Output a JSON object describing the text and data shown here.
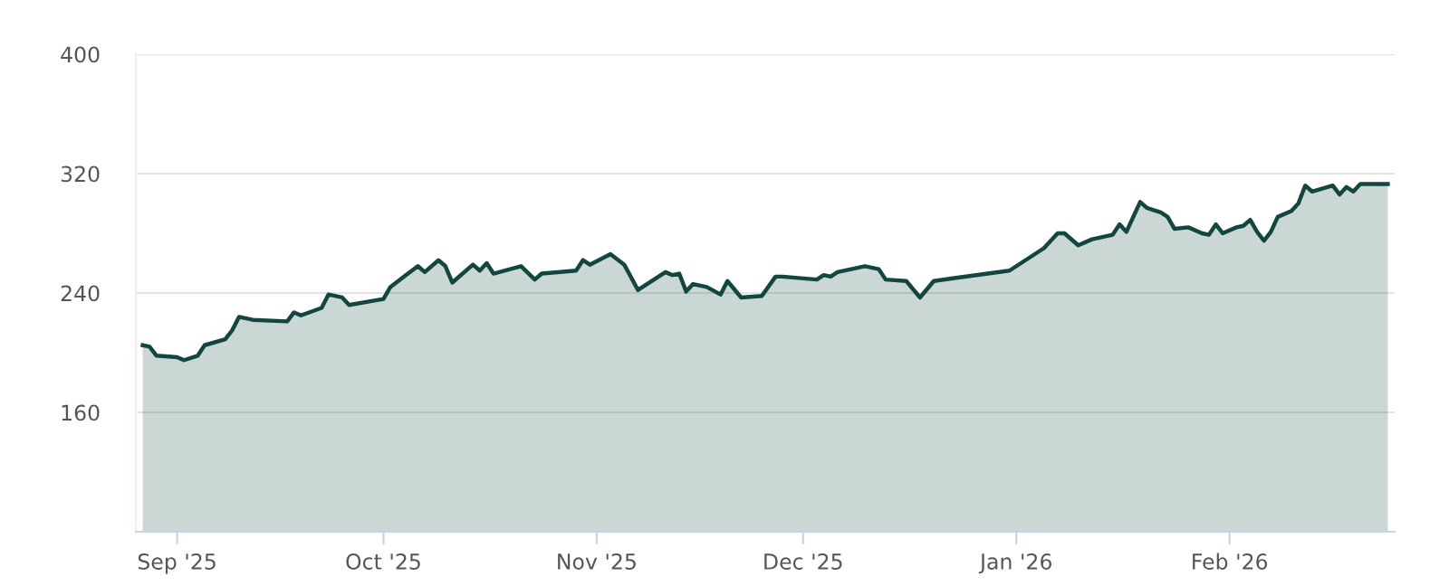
{
  "chart_data": {
    "type": "area",
    "color": "#12473f",
    "grid": "y",
    "marker": "none",
    "line_style": "solid",
    "x": [
      "2025-08-27",
      "2025-08-28",
      "2025-08-29",
      "2025-09-01",
      "2025-09-02",
      "2025-09-04",
      "2025-09-05",
      "2025-09-08",
      "2025-09-09",
      "2025-09-10",
      "2025-09-12",
      "2025-09-17",
      "2025-09-18",
      "2025-09-19",
      "2025-09-22",
      "2025-09-23",
      "2025-09-25",
      "2025-09-26",
      "2025-10-01",
      "2025-10-02",
      "2025-10-04",
      "2025-10-06",
      "2025-10-07",
      "2025-10-09",
      "2025-10-10",
      "2025-10-11",
      "2025-10-14",
      "2025-10-15",
      "2025-10-16",
      "2025-10-17",
      "2025-10-21",
      "2025-10-23",
      "2025-10-24",
      "2025-10-29",
      "2025-10-30",
      "2025-10-31",
      "2025-11-03",
      "2025-11-05",
      "2025-11-07",
      "2025-11-11",
      "2025-11-12",
      "2025-11-13",
      "2025-11-14",
      "2025-11-15",
      "2025-11-17",
      "2025-11-19",
      "2025-11-20",
      "2025-11-22",
      "2025-11-25",
      "2025-11-27",
      "2025-11-28",
      "2025-12-03",
      "2025-12-04",
      "2025-12-05",
      "2025-12-06",
      "2025-12-10",
      "2025-12-12",
      "2025-12-13",
      "2025-12-16",
      "2025-12-18",
      "2025-12-20",
      "2025-12-23",
      "2025-12-31",
      "2026-01-05",
      "2026-01-07",
      "2026-01-08",
      "2026-01-10",
      "2026-01-12",
      "2026-01-15",
      "2026-01-16",
      "2026-01-17",
      "2026-01-19",
      "2026-01-20",
      "2026-01-22",
      "2026-01-23",
      "2026-01-24",
      "2026-01-26",
      "2026-01-28",
      "2026-01-29",
      "2026-01-30",
      "2026-01-31",
      "2026-02-02",
      "2026-02-03",
      "2026-02-04",
      "2026-02-05",
      "2026-02-06",
      "2026-02-07",
      "2026-02-08",
      "2026-02-10",
      "2026-02-11",
      "2026-02-12",
      "2026-02-13",
      "2026-02-16",
      "2026-02-17",
      "2026-02-18",
      "2026-02-19",
      "2026-02-20",
      "2026-02-24"
    ],
    "values": [
      205,
      204,
      198,
      197,
      195,
      198,
      205,
      209,
      215,
      224,
      222,
      221,
      227,
      225,
      230,
      239,
      237,
      232,
      236,
      244,
      251,
      258,
      254,
      262,
      258,
      247,
      259,
      255,
      260,
      253,
      258,
      249,
      253,
      255,
      262,
      259,
      266,
      259,
      242,
      254,
      252,
      253,
      241,
      246,
      244,
      239,
      248,
      237,
      238,
      251,
      251,
      249,
      252,
      251,
      254,
      258,
      256,
      249,
      248,
      237,
      248,
      250,
      255,
      270,
      280,
      280,
      272,
      276,
      279,
      286,
      281,
      301,
      297,
      294,
      291,
      283,
      284,
      280,
      279,
      286,
      280,
      284,
      285,
      289,
      281,
      275,
      281,
      291,
      295,
      300,
      312,
      308,
      312,
      306,
      311,
      308,
      313,
      313
    ],
    "xlim": [
      "2025-08-26",
      "2026-02-25"
    ],
    "xticks": [
      {
        "value": "2025-09-01",
        "label": "Sep '25"
      },
      {
        "value": "2025-10-01",
        "label": "Oct '25"
      },
      {
        "value": "2025-11-01",
        "label": "Nov '25"
      },
      {
        "value": "2025-12-01",
        "label": "Dec '25"
      },
      {
        "value": "2026-01-01",
        "label": "Jan '26"
      },
      {
        "value": "2026-02-01",
        "label": "Feb '26"
      }
    ],
    "ylim": [
      80,
      400
    ],
    "yticks": [
      160,
      240,
      320,
      400
    ]
  }
}
